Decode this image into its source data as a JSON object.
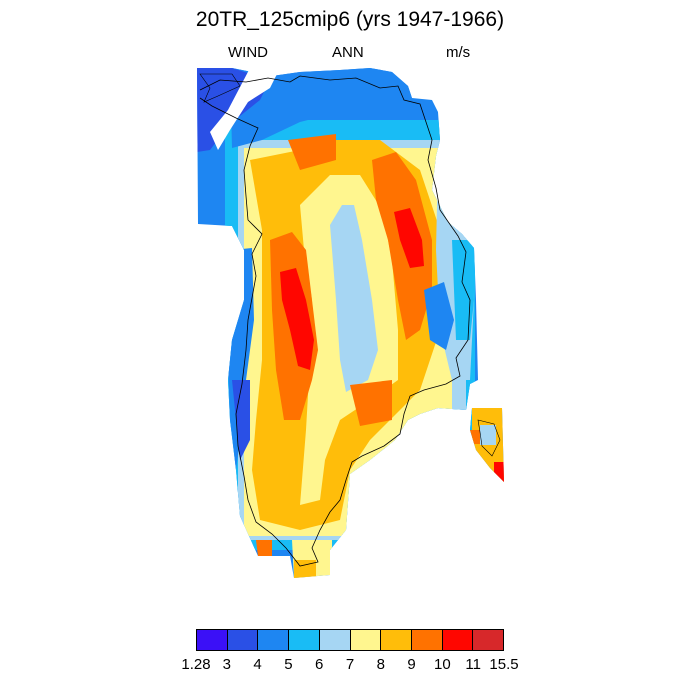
{
  "header": {
    "title": "20TR_125cmip6 (yrs 1947-1966)",
    "left": "WIND",
    "center": "ANN",
    "right": "m/s"
  },
  "colorbar": {
    "colors": [
      "#3b10f7",
      "#2a50e6",
      "#1e86f2",
      "#19bcf5",
      "#a6d6f3",
      "#fff68f",
      "#ffbd0a",
      "#ff7200",
      "#ff0600",
      "#d7282a"
    ],
    "labels": [
      "1.28",
      "3",
      "4",
      "5",
      "6",
      "7",
      "8",
      "9",
      "10",
      "11",
      "15.5"
    ]
  }
}
